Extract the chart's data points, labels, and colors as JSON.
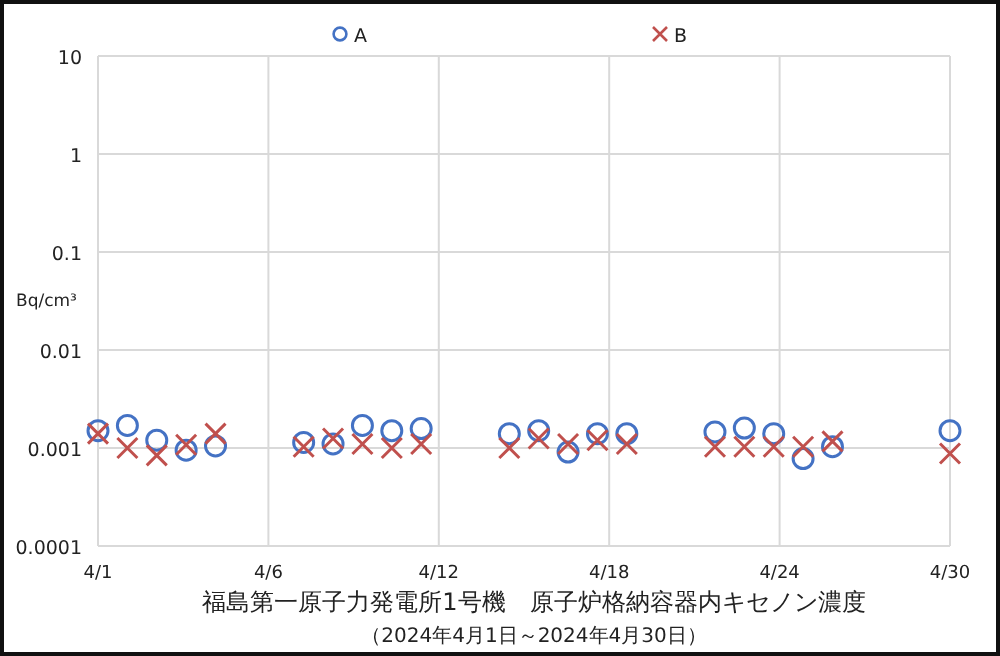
{
  "chart_data": {
    "type": "scatter",
    "title": "福島第一原子力発電所1号機　原子炉格納容器内キセノン濃度",
    "subtitle": "（2024年4月1日～2024年4月30日）",
    "ylabel": "Bq/cm³",
    "x": [
      "2024-04-01",
      "2024-04-02",
      "2024-04-03",
      "2024-04-04",
      "2024-04-05",
      "2024-04-08",
      "2024-04-09",
      "2024-04-10",
      "2024-04-11",
      "2024-04-12",
      "2024-04-15",
      "2024-04-16",
      "2024-04-17",
      "2024-04-18",
      "2024-04-19",
      "2024-04-22",
      "2024-04-23",
      "2024-04-24",
      "2024-04-25",
      "2024-04-26",
      "2024-04-30"
    ],
    "series": [
      {
        "name": "A",
        "color": "#4472c4",
        "marker": "circle",
        "values": [
          0.0015,
          0.0017,
          0.0012,
          0.00095,
          0.00105,
          0.00114,
          0.0011,
          0.0017,
          0.0015,
          0.00158,
          0.0014,
          0.0015,
          0.00091,
          0.0014,
          0.0014,
          0.00146,
          0.0016,
          0.0014,
          0.00078,
          0.00103,
          0.0015
        ]
      },
      {
        "name": "B",
        "color": "#c0504d",
        "marker": "cross",
        "values": [
          0.0014,
          0.001,
          0.00084,
          0.00108,
          0.0014,
          0.00103,
          0.00125,
          0.0011,
          0.001,
          0.0011,
          0.001,
          0.00125,
          0.0011,
          0.0012,
          0.0011,
          0.00103,
          0.00103,
          0.00103,
          0.00103,
          0.00117,
          0.00088
        ]
      }
    ],
    "xlim": [
      "2024-04-01",
      "2024-04-30"
    ],
    "xticks": [
      {
        "value": "2024-04-01",
        "label": "4/1"
      },
      {
        "value": "2024-04-06T19:12",
        "label": "4/6"
      },
      {
        "value": "2024-04-12T14:24",
        "label": "4/12"
      },
      {
        "value": "2024-04-18T09:36",
        "label": "4/18"
      },
      {
        "value": "2024-04-24T04:48",
        "label": "4/24"
      },
      {
        "value": "2024-04-30",
        "label": "4/30"
      }
    ],
    "log": true,
    "ylim": [
      0.0001,
      10
    ],
    "yticks": [
      0.0001,
      0.001,
      0.01,
      0.1,
      1,
      10
    ],
    "grid": true,
    "legend": "top"
  }
}
